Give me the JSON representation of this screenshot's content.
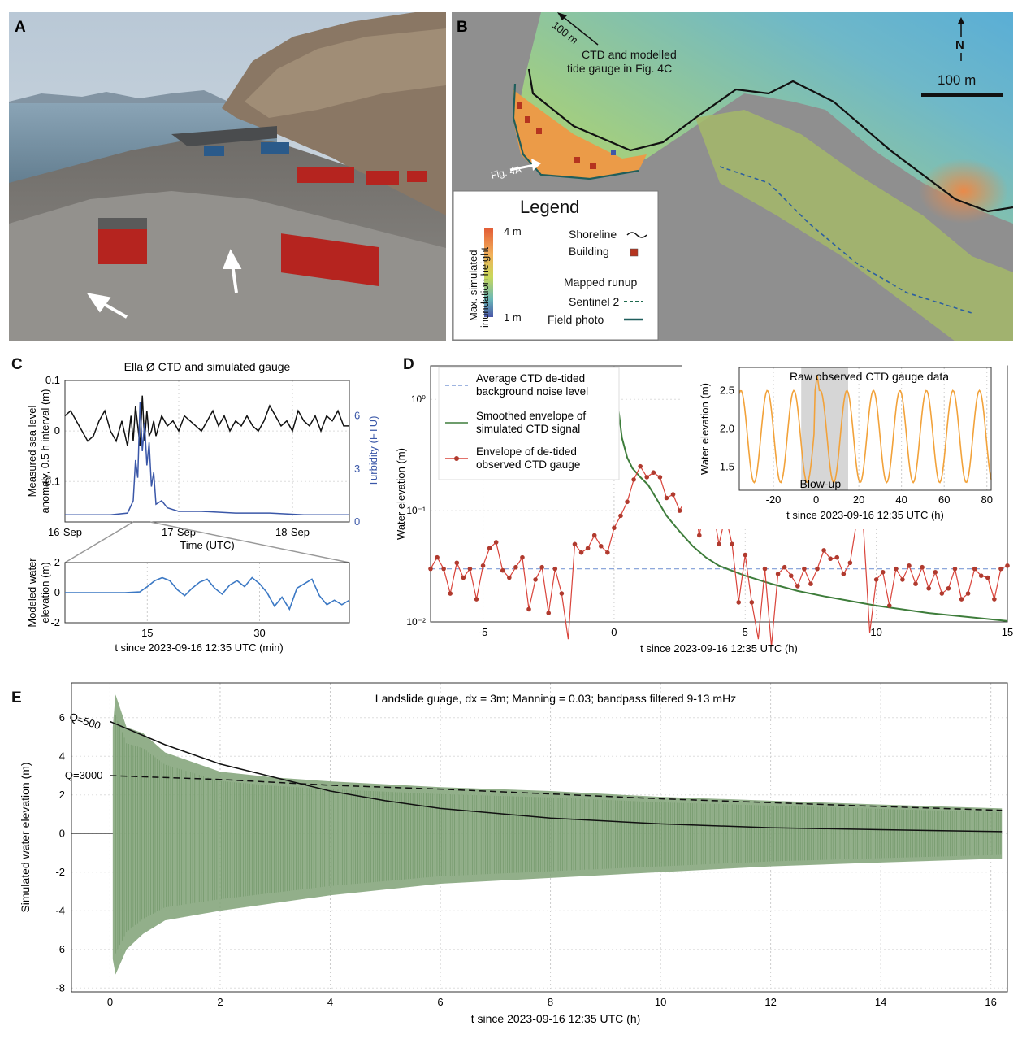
{
  "panel_a": {
    "letter": "A"
  },
  "panel_b": {
    "letter": "B",
    "callout_distance": "100 m",
    "callout_text_1": "CTD and modelled",
    "callout_text_2": "tide gauge in Fig. 4C",
    "north": "N",
    "scale_label": "100 m",
    "fig_ref": "Fig. 4A",
    "legend": {
      "title": "Legend",
      "colorbar_label_1": "Max. simulated",
      "colorbar_label_2": "inundation height",
      "colorbar_top": "4 m",
      "colorbar_bottom": "1 m",
      "shoreline": "Shoreline",
      "building": "Building",
      "mapped_runup": "Mapped runup",
      "sentinel": "Sentinel 2",
      "field_photo": "Field photo"
    }
  },
  "chart_data": [
    {
      "id": "C-top",
      "type": "line",
      "title": "Ella Ø CTD and simulated gauge",
      "ylabel": "Measured sea level anomaly, 0.5 h interval (m)",
      "ylabel_line1": "Measured sea level",
      "ylabel_line2": "anomaly, 0.5 h interval (m)",
      "y2label": "Turbidity (FTU)",
      "xlabel": "Time (UTC)",
      "xticks": [
        "16-Sep",
        "17-Sep",
        "18-Sep"
      ],
      "ylim": [
        -0.18,
        0.1
      ],
      "yticks": [
        "0.1",
        "0",
        "-0.1"
      ],
      "y2lim": [
        0,
        8
      ],
      "y2ticks": [
        "6",
        "3",
        "0"
      ],
      "series": [
        {
          "color": "#111111",
          "x_days": [
            0.0,
            0.05,
            0.1,
            0.15,
            0.2,
            0.25,
            0.3,
            0.35,
            0.4,
            0.45,
            0.5,
            0.55,
            0.58,
            0.6,
            0.62,
            0.64,
            0.66,
            0.68,
            0.7,
            0.72,
            0.74,
            0.76,
            0.78,
            0.8,
            0.85,
            0.9,
            0.95,
            1.0,
            1.05,
            1.1,
            1.15,
            1.2,
            1.25,
            1.3,
            1.35,
            1.4,
            1.45,
            1.5,
            1.55,
            1.6,
            1.65,
            1.7,
            1.75,
            1.8,
            1.85,
            1.9,
            1.95,
            2.0,
            2.05,
            2.1,
            2.15,
            2.2,
            2.25,
            2.3,
            2.35,
            2.4,
            2.45,
            2.5
          ],
          "values": [
            0.03,
            0.04,
            0.02,
            0.0,
            -0.02,
            -0.01,
            0.02,
            0.04,
            0.0,
            -0.02,
            0.02,
            -0.03,
            0.03,
            -0.02,
            0.05,
            0.01,
            -0.03,
            0.07,
            -0.02,
            0.04,
            -0.01,
            0.0,
            0.02,
            -0.01,
            0.03,
            0.01,
            0.02,
            0.0,
            0.03,
            0.02,
            0.01,
            0.0,
            0.02,
            0.04,
            0.01,
            0.03,
            0.0,
            0.02,
            0.01,
            0.03,
            0.01,
            0.0,
            0.02,
            0.05,
            0.03,
            0.01,
            0.02,
            0.0,
            0.04,
            0.02,
            0.01,
            0.03,
            0.0,
            0.03,
            0.02,
            0.04,
            0.01,
            0.01
          ]
        },
        {
          "color": "#3a57a8",
          "axis": "right",
          "x_days": [
            0.0,
            0.2,
            0.4,
            0.55,
            0.6,
            0.62,
            0.64,
            0.66,
            0.68,
            0.7,
            0.72,
            0.74,
            0.76,
            0.78,
            0.8,
            0.85,
            0.9,
            1.0,
            1.2,
            1.5,
            1.8,
            2.1,
            2.5
          ],
          "values": [
            0.4,
            0.4,
            0.4,
            0.5,
            1.2,
            3.5,
            2.5,
            6.8,
            4.0,
            5.6,
            3.2,
            4.5,
            2.0,
            2.8,
            1.0,
            1.2,
            0.8,
            0.6,
            0.6,
            0.5,
            0.5,
            0.4,
            0.4
          ]
        }
      ]
    },
    {
      "id": "C-bottom",
      "type": "line",
      "ylabel": "Modeled water elevation (m)",
      "ylabel_line1": "Modeled water",
      "ylabel_line2": "elevation (m)",
      "xlabel": "t since 2023-09-16 12:35 UTC (min)",
      "xticks": [
        "15",
        "30"
      ],
      "yticks": [
        "2",
        "0",
        "-2"
      ],
      "ylim": [
        -2,
        2
      ],
      "xlim": [
        4,
        42
      ],
      "series": [
        {
          "color": "#3b78c4",
          "x": [
            4,
            8,
            12,
            14,
            15,
            16,
            17,
            18,
            19,
            20,
            21,
            22,
            23,
            24,
            25,
            26,
            27,
            28,
            29,
            30,
            31,
            32,
            33,
            34,
            35,
            36,
            37,
            38,
            39,
            40,
            41,
            42
          ],
          "values": [
            0,
            0,
            0,
            0.05,
            0.4,
            0.8,
            1.0,
            0.8,
            0.2,
            -0.2,
            0.3,
            0.7,
            0.9,
            0.3,
            -0.1,
            0.5,
            0.8,
            0.4,
            1.0,
            0.6,
            0.0,
            -0.9,
            -0.3,
            -1.1,
            0.3,
            0.6,
            0.9,
            -0.2,
            -0.8,
            -0.5,
            -0.8,
            -0.5
          ]
        }
      ]
    },
    {
      "id": "D-main",
      "type": "line",
      "ylabel": "Water elevation (m)",
      "xlabel": "t since 2023-09-16 12:35 UTC (h)",
      "xlim": [
        -7,
        15
      ],
      "xticks": [
        "-5",
        "0",
        "5",
        "10",
        "15"
      ],
      "ylim": [
        0.01,
        2.0
      ],
      "yscale": "log",
      "yticks": [
        "10⁰",
        "10⁻¹",
        "10⁻²"
      ],
      "series": [
        {
          "name": "Average CTD de-tided background noise level",
          "color": "#7f9cd6",
          "dashed": true,
          "x": [
            -7,
            15
          ],
          "values": [
            0.03,
            0.03
          ]
        },
        {
          "name": "Smoothed envelope of simulated CTD signal",
          "color": "#3e7d3b",
          "x": [
            0.0,
            0.1,
            0.2,
            0.3,
            0.5,
            0.7,
            1.0,
            1.3,
            1.6,
            2.0,
            2.5,
            3.0,
            3.5,
            4.0,
            5.0,
            6.0,
            7.0,
            8.0,
            10.0,
            12.0,
            15.0
          ],
          "values": [
            1.5,
            1.1,
            0.7,
            0.45,
            0.3,
            0.24,
            0.2,
            0.17,
            0.13,
            0.09,
            0.065,
            0.048,
            0.038,
            0.032,
            0.026,
            0.022,
            0.019,
            0.017,
            0.014,
            0.012,
            0.0102
          ]
        },
        {
          "name": "Envelope of de-tided observed CTD gauge",
          "color": "#d9433a",
          "marker": "#b03a2e",
          "x": [
            -7,
            -6.75,
            -6.5,
            -6.25,
            -6,
            -5.75,
            -5.5,
            -5.25,
            -5,
            -4.75,
            -4.5,
            -4.25,
            -4,
            -3.75,
            -3.5,
            -3.25,
            -3,
            -2.75,
            -2.5,
            -2.25,
            -2,
            -1.75,
            -1.5,
            -1.25,
            -1,
            -0.75,
            -0.5,
            -0.25,
            0,
            0.25,
            0.5,
            0.75,
            1,
            1.25,
            1.5,
            1.75,
            2,
            2.25,
            2.5,
            2.75,
            3,
            3.25,
            3.5,
            3.75,
            4,
            4.25,
            4.5,
            4.75,
            5,
            5.25,
            5.5,
            5.75,
            6,
            6.25,
            6.5,
            6.75,
            7,
            7.25,
            7.5,
            7.75,
            8,
            8.25,
            8.5,
            8.75,
            9,
            9.25,
            9.5,
            9.75,
            10,
            10.25,
            10.5,
            10.75,
            11,
            11.25,
            11.5,
            11.75,
            12,
            12.25,
            12.5,
            12.75,
            13,
            13.25,
            13.5,
            13.75,
            14,
            14.25,
            14.5,
            14.75,
            15
          ],
          "values": [
            0.03,
            0.038,
            0.03,
            0.018,
            0.034,
            0.025,
            0.03,
            0.016,
            0.032,
            0.046,
            0.052,
            0.029,
            0.025,
            0.031,
            0.038,
            0.013,
            0.024,
            0.031,
            0.012,
            0.03,
            0.018,
            0.007,
            0.05,
            0.042,
            0.046,
            0.06,
            0.048,
            0.042,
            0.07,
            0.09,
            0.12,
            0.19,
            0.25,
            0.2,
            0.22,
            0.2,
            0.13,
            0.14,
            0.1,
            0.13,
            0.14,
            0.06,
            0.12,
            0.11,
            0.05,
            0.09,
            0.05,
            0.015,
            0.04,
            0.015,
            0.007,
            0.03,
            0.006,
            0.027,
            0.031,
            0.026,
            0.021,
            0.03,
            0.022,
            0.03,
            0.044,
            0.037,
            0.038,
            0.027,
            0.034,
            0.08,
            0.077,
            0.008,
            0.024,
            0.028,
            0.014,
            0.03,
            0.024,
            0.032,
            0.022,
            0.031,
            0.02,
            0.028,
            0.018,
            0.02,
            0.03,
            0.016,
            0.018,
            0.03,
            0.026,
            0.025,
            0.016,
            0.03,
            0.032
          ]
        }
      ]
    },
    {
      "id": "D-inset",
      "type": "line",
      "title": "Raw observed CTD gauge data",
      "annotation": "Blow-up",
      "ylabel": "Water elevation (m)",
      "xlabel": "t since 2023-09-16 12:35 UTC (h)",
      "xlim": [
        -36,
        82
      ],
      "xticks": [
        "-20",
        "0",
        "20",
        "40",
        "60",
        "80"
      ],
      "ylim": [
        1.2,
        2.8
      ],
      "yticks": [
        "2.5",
        "2.0",
        "1.5"
      ],
      "shaded_range": [
        -7,
        15
      ],
      "series": [
        {
          "color": "#f2a23a",
          "tide_mean": 1.9,
          "tide_amplitude": 0.6,
          "period_h": 12.42,
          "spike_at_h": 0.5,
          "spike_value": 2.7
        }
      ]
    },
    {
      "id": "E",
      "type": "area",
      "title": "Landslide guage, dx = 3m; Manning = 0.03; bandpass filtered 9-13 mHz",
      "ylabel": "Simulated water elevation (m)",
      "xlabel": "t since 2023-09-16 12:35 UTC (h)",
      "xlim": [
        -0.7,
        16.3
      ],
      "ylim": [
        -8.2,
        7.8
      ],
      "xticks": [
        "0",
        "2",
        "4",
        "6",
        "8",
        "10",
        "12",
        "14",
        "16"
      ],
      "yticks": [
        "6",
        "4",
        "2",
        "0",
        "-2",
        "-4",
        "-6",
        "-8"
      ],
      "series": [
        {
          "name": "Q=500",
          "color": "#111111",
          "dashed": false,
          "x": [
            0,
            1,
            2,
            3,
            4,
            5,
            6,
            8,
            10,
            12,
            14,
            16.2
          ],
          "values": [
            5.8,
            4.6,
            3.6,
            2.9,
            2.2,
            1.7,
            1.3,
            0.8,
            0.5,
            0.3,
            0.2,
            0.1
          ]
        },
        {
          "name": "Q=3000",
          "color": "#111111",
          "dashed": true,
          "x": [
            0,
            2,
            4,
            6,
            8,
            10,
            12,
            14,
            16.2
          ],
          "values": [
            3.0,
            2.8,
            2.5,
            2.3,
            2.05,
            1.8,
            1.6,
            1.4,
            1.2
          ]
        },
        {
          "name": "envelope",
          "color": "#7fa176",
          "x": [
            0.05,
            0.1,
            0.3,
            0.6,
            1,
            2,
            3,
            4,
            6,
            8,
            10,
            12,
            14,
            16.2
          ],
          "upper": [
            5.5,
            7.2,
            5.5,
            5.2,
            4.2,
            3.2,
            2.9,
            2.7,
            2.4,
            2.2,
            1.9,
            1.7,
            1.5,
            1.3
          ],
          "lower": [
            -6.5,
            -7.3,
            -6.0,
            -5.2,
            -4.5,
            -4.0,
            -3.6,
            -3.2,
            -2.6,
            -2.3,
            -2.0,
            -1.7,
            -1.5,
            -1.3
          ]
        }
      ]
    }
  ],
  "panel_c": {
    "letter": "C"
  },
  "panel_d": {
    "letter": "D"
  },
  "panel_e": {
    "letter": "E"
  }
}
